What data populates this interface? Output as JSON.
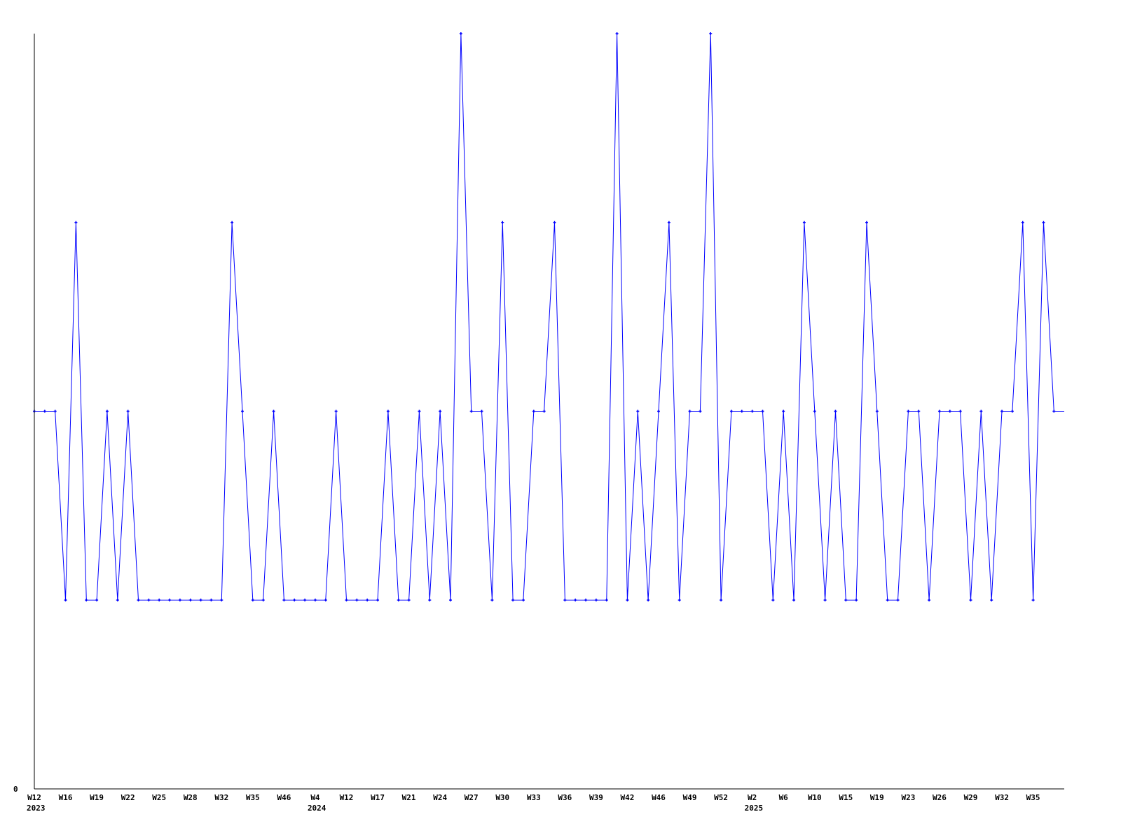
{
  "chart_data": {
    "type": "line",
    "title": "",
    "xlabel": "",
    "ylabel": "",
    "ylim": [
      0,
      4
    ],
    "yticks": [
      "0"
    ],
    "grid": false,
    "legend": "none",
    "line_color": "#0000ff",
    "axis_color": "#000000",
    "values": [
      2,
      2,
      2,
      1,
      3,
      1,
      1,
      2,
      1,
      2,
      1,
      1,
      1,
      1,
      1,
      1,
      1,
      1,
      1,
      3,
      2,
      1,
      1,
      2,
      1,
      1,
      1,
      1,
      1,
      2,
      1,
      1,
      1,
      1,
      2,
      1,
      1,
      2,
      1,
      2,
      1,
      4,
      2,
      2,
      1,
      3,
      1,
      1,
      2,
      2,
      3,
      1,
      1,
      1,
      1,
      1,
      4,
      1,
      2,
      1,
      2,
      3,
      1,
      2,
      2,
      4,
      1,
      2,
      2,
      2,
      2,
      1,
      2,
      1,
      3,
      2,
      1,
      2,
      1,
      1,
      3,
      2,
      1,
      1,
      2,
      2,
      1,
      2,
      2,
      2,
      1,
      2,
      1,
      2,
      2,
      3,
      1,
      3,
      2
    ],
    "x_tick_labels": [
      "W12",
      "W16",
      "W19",
      "W22",
      "W25",
      "W28",
      "W32",
      "W35",
      "W46",
      "W4",
      "W12",
      "W17",
      "W21",
      "W24",
      "W27",
      "W30",
      "W33",
      "W36",
      "W39",
      "W42",
      "W46",
      "W49",
      "W52",
      "W2",
      "W6",
      "W10",
      "W15",
      "W19",
      "W23",
      "W26",
      "W29",
      "W32",
      "W35"
    ],
    "x_tick_every": 3,
    "year_labels": [
      {
        "label": "2023",
        "tick_index": 0
      },
      {
        "label": "2024",
        "tick_index": 9
      },
      {
        "label": "2025",
        "tick_index": 23
      }
    ]
  }
}
